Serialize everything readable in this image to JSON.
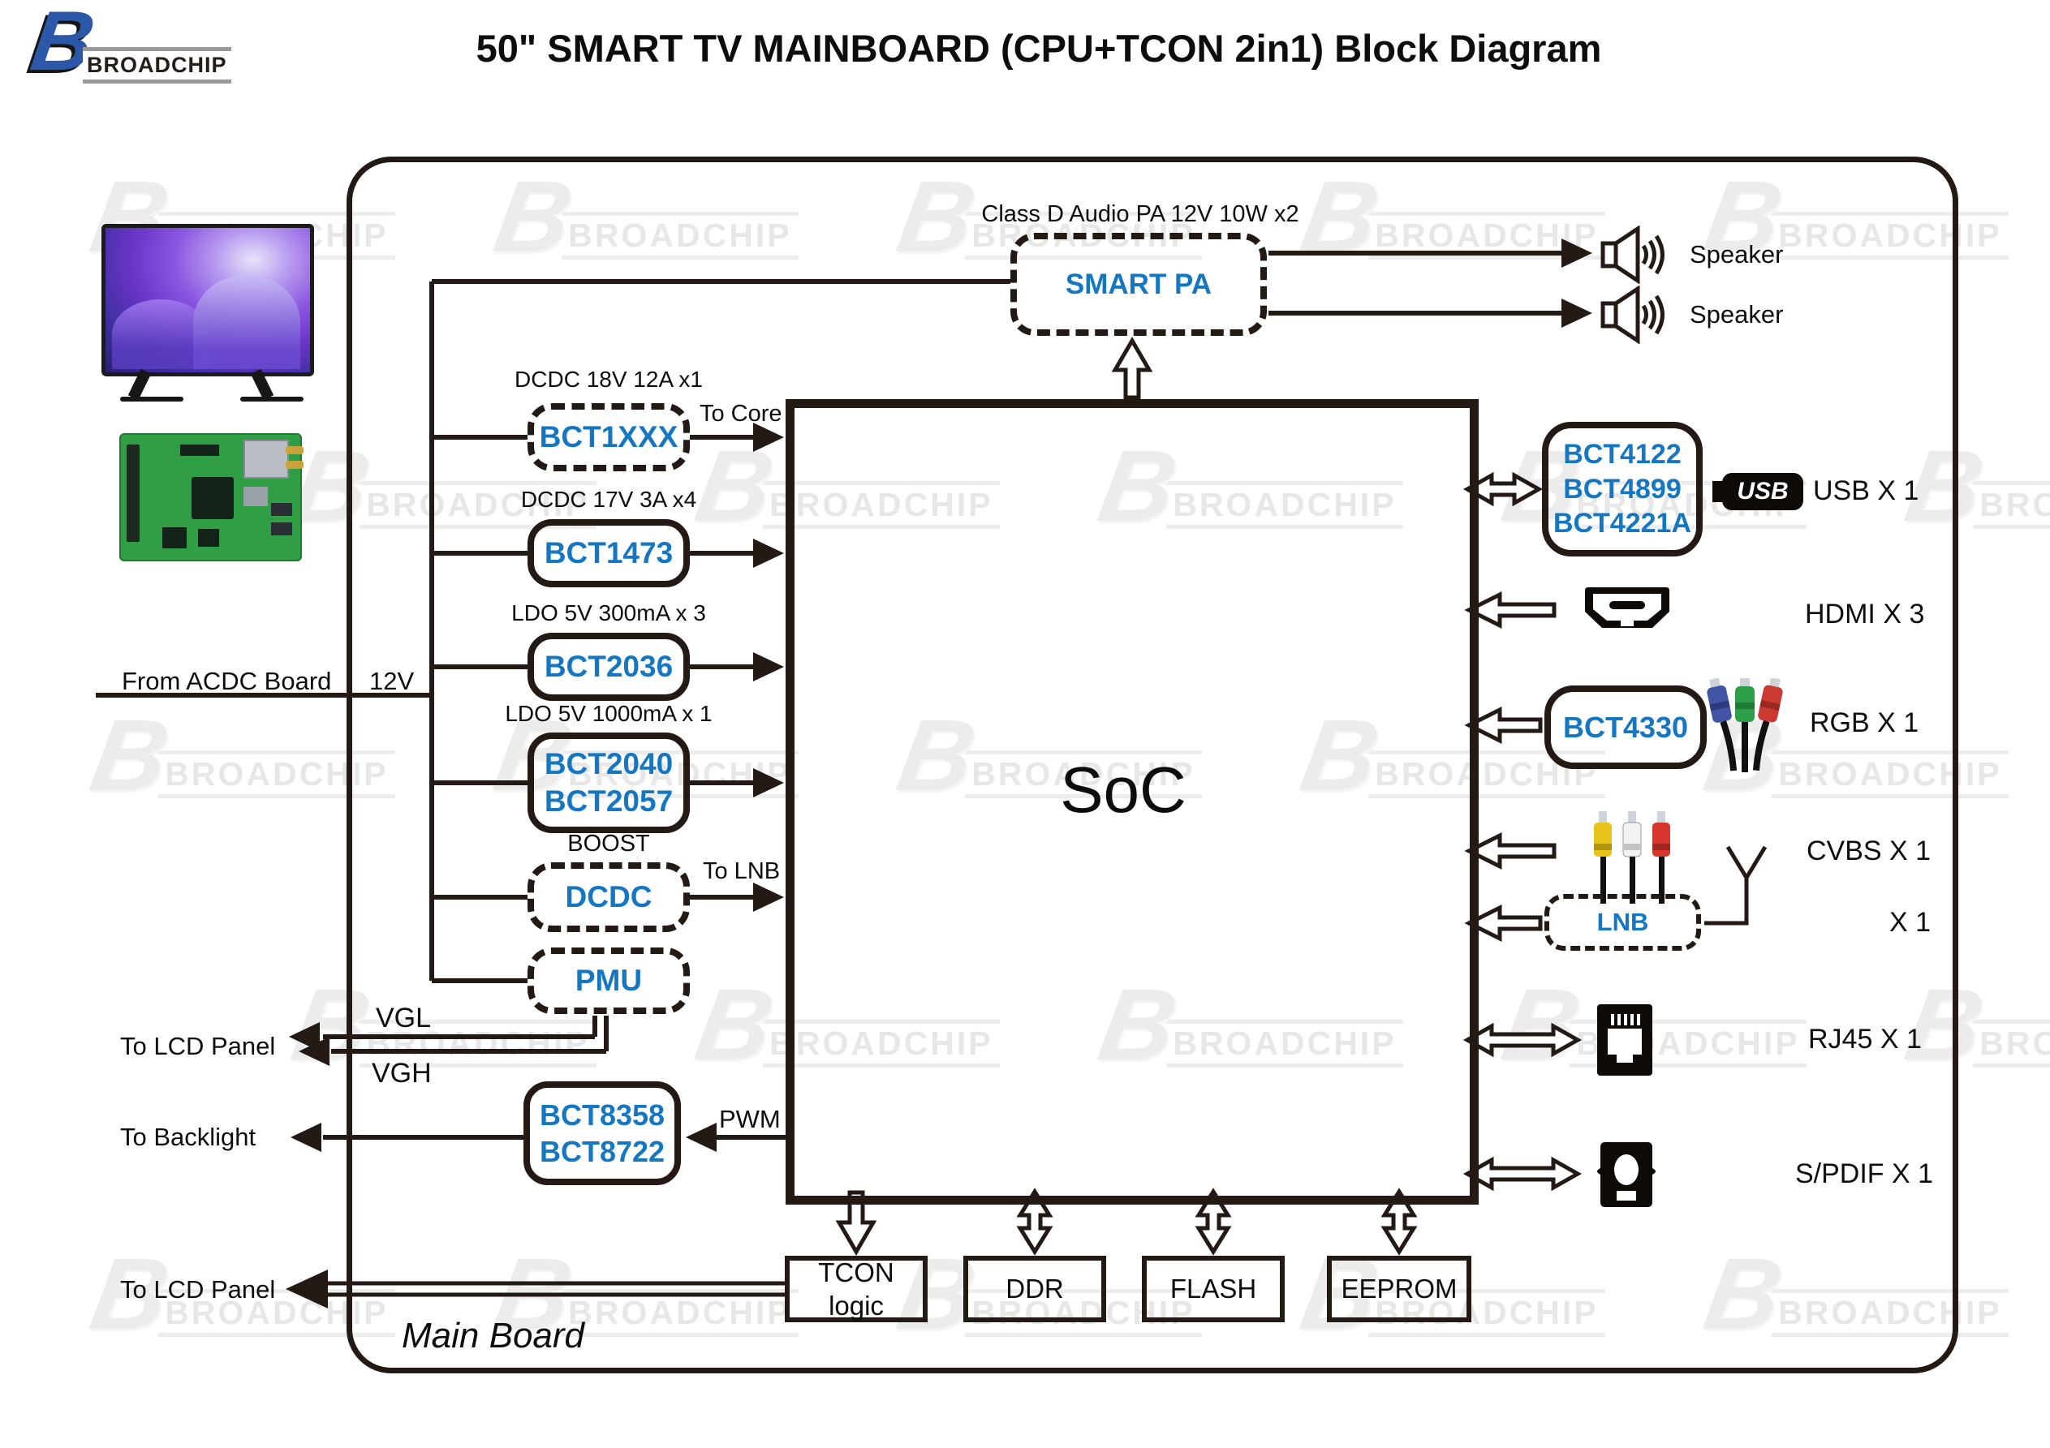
{
  "logo": {
    "letter": "B",
    "brand": "BROADCHIP"
  },
  "header": {
    "title": "50\" SMART TV MAINBOARD (CPU+TCON 2in1) Block Diagram"
  },
  "watermark": {
    "letter": "B",
    "text": "BROADCHIP"
  },
  "board": {
    "label": "Main Board"
  },
  "power_input": {
    "source_label": "From ACDC Board",
    "rail_label": "12V"
  },
  "audio": {
    "caption": "Class D Audio PA  12V 10W x2",
    "amp": "SMART PA",
    "speaker1": "Speaker",
    "speaker2": "Speaker"
  },
  "soc": {
    "label": "SoC"
  },
  "regulators": {
    "core": {
      "caption": "DCDC 18V 12A x1",
      "chip": "BCT1XXX",
      "out": "To Core"
    },
    "panel17": {
      "caption": "DCDC 17V 3A x4",
      "chip": "BCT1473"
    },
    "ldo300": {
      "caption": "LDO 5V 300mA x 3",
      "chip": "BCT2036"
    },
    "ldo1000": {
      "caption": "LDO 5V 1000mA x 1",
      "chip1": "BCT2040",
      "chip2": "BCT2057"
    },
    "boost": {
      "caption": "BOOST",
      "chip": "DCDC",
      "out": "To LNB"
    },
    "pmu": {
      "chip": "PMU"
    }
  },
  "backlight": {
    "chip1": "BCT8358",
    "chip2": "BCT8722",
    "pwm": "PWM",
    "to": "To Backlight"
  },
  "panel": {
    "vgl": "VGL",
    "vgh": "VGH",
    "to_lcd_top": "To LCD Panel",
    "to_lcd_bottom": "To LCD Panel"
  },
  "ports": {
    "usb": {
      "chip1": "BCT4122",
      "chip2": "BCT4899",
      "chip3": "BCT4221A",
      "icon_text": "USB",
      "label": "USB  X 1"
    },
    "hdmi": {
      "label": "HDMI X 3"
    },
    "rgb": {
      "chip": "BCT4330",
      "label": "RGB  X 1"
    },
    "cvbs": {
      "label": "CVBS X 1"
    },
    "lnb": {
      "chip": "LNB",
      "label": "X 1"
    },
    "rj45": {
      "label": "RJ45  X 1"
    },
    "spdif": {
      "label": "S/PDIF X 1"
    }
  },
  "memory": {
    "tcon": "TCON logic",
    "ddr": "DDR",
    "flash": "FLASH",
    "eeprom": "EEPROM"
  },
  "colors": {
    "chip_blue": "#1577c2",
    "line": "#231a16",
    "logo_blue": "#2b58a8",
    "watermark": "#ececec",
    "pcb_green": "#2f9e44"
  }
}
